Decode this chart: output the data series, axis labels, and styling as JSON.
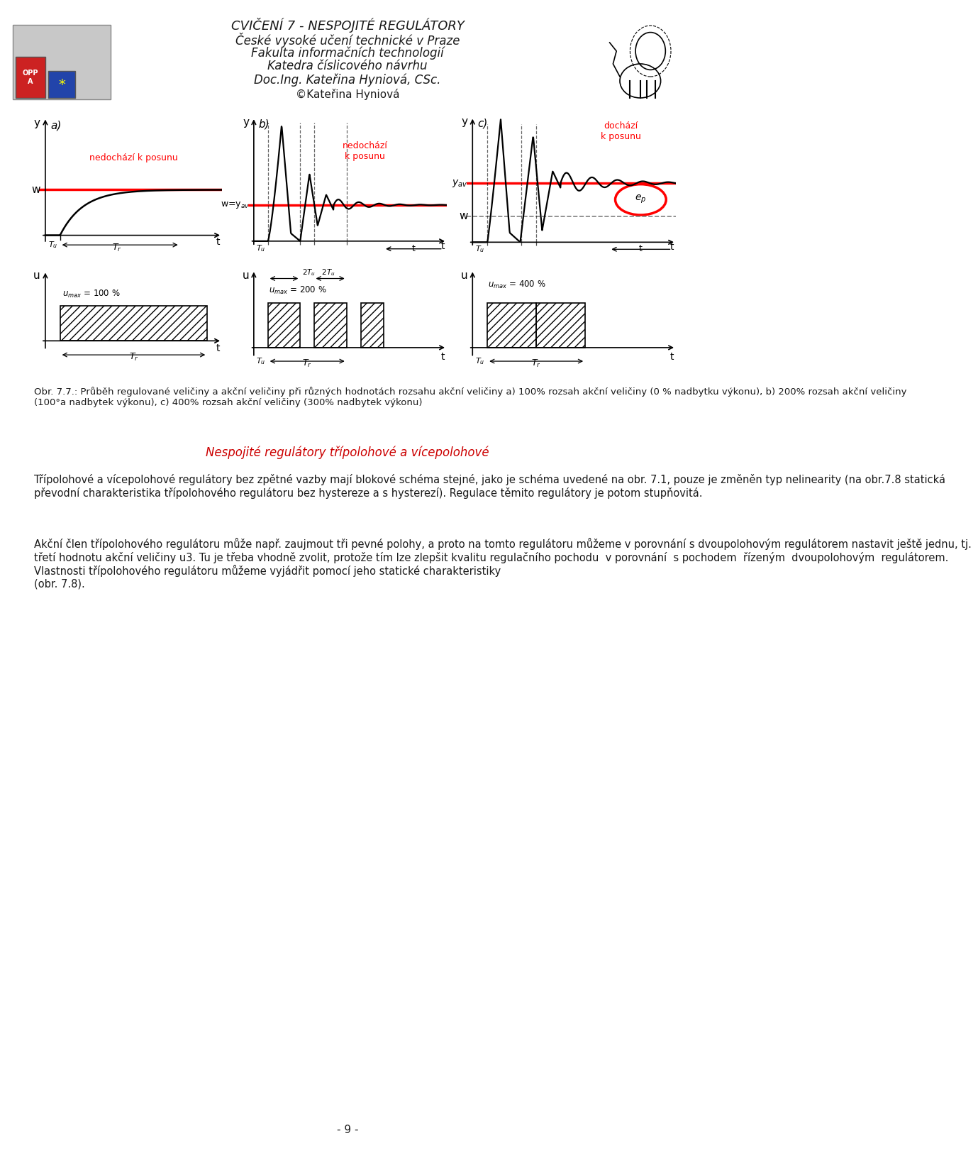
{
  "title_line1": "CVIČENÍ 7 - NESPOJITÉ REGULÁTORY",
  "title_line2": "České vysoké učení technické v Praze",
  "title_line3": "Fakulta informačních technologií",
  "title_line4": "Katedra číslicového návrhu",
  "title_line5": "Doc.Ing. Kateřina Hyniová, CSc.",
  "title_line6": "©Kateřina Hyniová",
  "caption": "Obr. 7.7.: Průběh regulované veličiny a akční veličiny při různých hodnotách rozsahu akční veličiny a) 100% rozsah akční veličiny (0 % nadbytku výkonu), b) 200% rozsah akční veličiny\n(100°a nadbytek výkonu), c) 400% rozsah akční veličiny (300% nadbytek výkonu)",
  "heading": "Nespojité regulátory třípolohové a vícepolohové",
  "paragraph1": "Třípolohové a vícepolohové regulátory bez zpětné vazby mají blokové schéma stejné, jako je schéma uvedené na obr. 7.1, pouze je změněn typ nelinearity (na obr.7.8 statická\npřevodní charakteristika třípolohového regulátoru bez hystereze a s hysterezí). Regulace těmito regulátory je potom stupňovitá.",
  "paragraph2": "Akční člen třípolohového regulátoru může např. zaujmout tři pevné polohy, a proto na tomto regulátoru můžeme v porovnání s dvoupolohovým regulátorem nastavit ještě jednu, tj.\ntřetí hodnotu akční veličiny u3. Tu je třeba vhodně zvolit, protože tím lze zlepšit kvalitu regulačního pochodu  v porovnání  s pochodem  řízeným  dvoupolohovým  regulátorem.\nVlastnosti třípolohového regulátoru můžeme vyjádřit pomocí jeho statické charakteristiky\n(obr. 7.8).",
  "page_number": "- 9 -",
  "bg_color": "#ffffff",
  "text_color": "#1a1a1a",
  "red_color": "#cc0000"
}
